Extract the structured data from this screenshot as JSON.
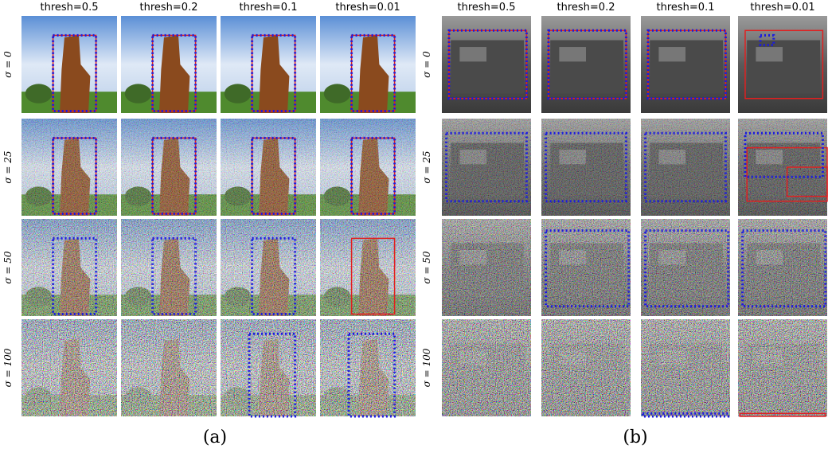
{
  "panels": [
    {
      "columns": [
        "thresh=0.5",
        "thresh=0.2",
        "thresh=0.1",
        "thresh=0.01"
      ],
      "rows": [
        "σ = 0",
        "σ = 25",
        "σ = 50",
        "σ = 100"
      ],
      "caption": "(a)"
    },
    {
      "columns": [
        "thresh=0.5",
        "thresh=0.2",
        "thresh=0.1",
        "thresh=0.01"
      ],
      "rows": [
        "σ = 0",
        "σ = 25",
        "σ = 50",
        "σ = 100"
      ],
      "caption": "(b)"
    }
  ]
}
